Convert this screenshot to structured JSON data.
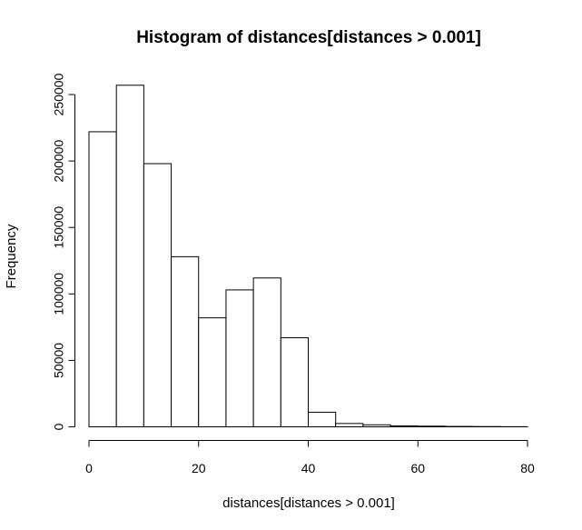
{
  "chart_data": {
    "type": "bar",
    "title": "Histogram of distances[distances > 0.001]",
    "xlabel": "distances[distances > 0.001]",
    "ylabel": "Frequency",
    "xlim": [
      0,
      80
    ],
    "ylim": [
      0,
      260000
    ],
    "bin_edges": [
      0,
      5,
      10,
      15,
      20,
      25,
      30,
      35,
      40,
      45,
      50,
      55,
      60,
      65,
      70,
      75,
      80
    ],
    "values": [
      222000,
      257000,
      198000,
      128000,
      82000,
      103000,
      112000,
      67000,
      11000,
      2500,
      1500,
      700,
      500,
      300,
      200,
      100
    ],
    "x_ticks": [
      0,
      20,
      40,
      60,
      80
    ],
    "y_ticks": [
      0,
      50000,
      100000,
      150000,
      200000,
      250000
    ],
    "x_tick_labels": [
      "0",
      "20",
      "40",
      "60",
      "80"
    ],
    "y_tick_labels": [
      "0",
      "50000",
      "100000",
      "150000",
      "200000",
      "250000"
    ],
    "grid": false
  }
}
